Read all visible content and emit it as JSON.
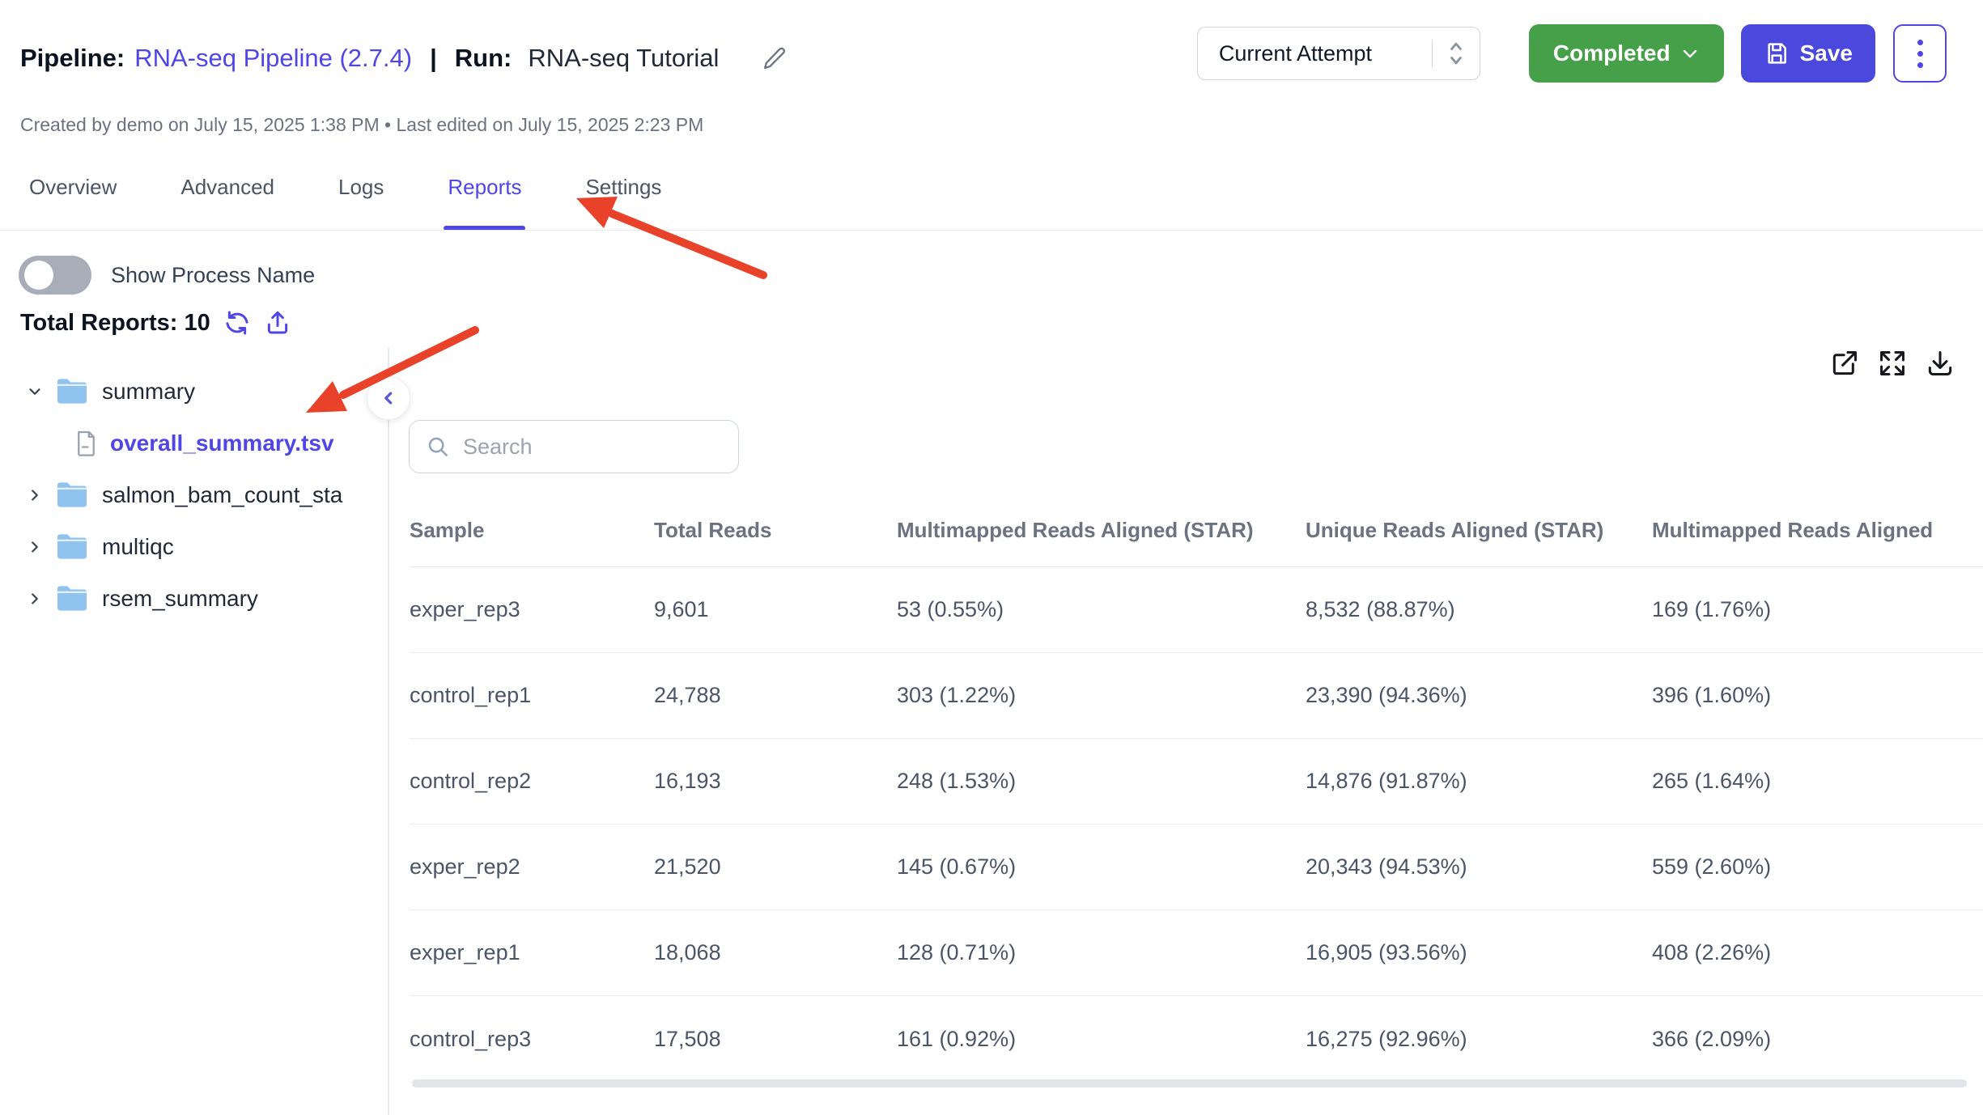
{
  "header": {
    "pipeline_label": "Pipeline:",
    "pipeline_name": "RNA-seq Pipeline (2.7.4)",
    "separator": "|",
    "run_label": "Run:",
    "run_name": "RNA-seq Tutorial",
    "meta": "Created by demo on July 15, 2025 1:38 PM • Last edited on July 15, 2025 2:23 PM",
    "attempt_selector_value": "Current Attempt",
    "status_button_label": "Completed",
    "save_button_label": "Save"
  },
  "tabs": [
    {
      "label": "Overview",
      "active": false
    },
    {
      "label": "Advanced",
      "active": false
    },
    {
      "label": "Logs",
      "active": false
    },
    {
      "label": "Reports",
      "active": true
    },
    {
      "label": "Settings",
      "active": false
    }
  ],
  "reports_toolbar": {
    "toggle_label": "Show Process Name",
    "toggle_state": "off",
    "total_reports_label": "Total Reports: 10"
  },
  "file_tree": {
    "items": [
      {
        "kind": "folder",
        "label": "summary",
        "expanded": true
      },
      {
        "kind": "file",
        "label": "overall_summary.tsv",
        "selected": true
      },
      {
        "kind": "folder",
        "label": "salmon_bam_count_sta",
        "expanded": false
      },
      {
        "kind": "folder",
        "label": "multiqc",
        "expanded": false
      },
      {
        "kind": "folder",
        "label": "rsem_summary",
        "expanded": false
      }
    ]
  },
  "viewer": {
    "search_placeholder": "Search",
    "table": {
      "columns": [
        "Sample",
        "Total Reads",
        "Multimapped Reads Aligned (STAR)",
        "Unique Reads Aligned (STAR)",
        "Multimapped Reads Aligned"
      ],
      "rows": [
        [
          "exper_rep3",
          "9,601",
          "53 (0.55%)",
          "8,532 (88.87%)",
          "169 (1.76%)"
        ],
        [
          "control_rep1",
          "24,788",
          "303 (1.22%)",
          "23,390 (94.36%)",
          "396 (1.60%)"
        ],
        [
          "control_rep2",
          "16,193",
          "248 (1.53%)",
          "14,876 (91.87%)",
          "265 (1.64%)"
        ],
        [
          "exper_rep2",
          "21,520",
          "145 (0.67%)",
          "20,343 (94.53%)",
          "559 (2.60%)"
        ],
        [
          "exper_rep1",
          "18,068",
          "128 (0.71%)",
          "16,905 (93.56%)",
          "408 (2.26%)"
        ],
        [
          "control_rep3",
          "17,508",
          "161 (0.92%)",
          "16,275 (92.96%)",
          "366 (2.09%)"
        ]
      ]
    }
  },
  "icons": {
    "edit": "pencil-icon",
    "select_spinner": "updown-chevrons-icon",
    "status_chevron": "chevron-down-icon",
    "save": "floppy-disk-icon",
    "menu": "kebab-menu-icon",
    "refresh": "refresh-icon",
    "upload": "upload-icon",
    "folder": "folder-icon",
    "file": "file-icon",
    "collapse": "chevron-left-icon",
    "open_external": "external-link-icon",
    "fullscreen": "expand-icon",
    "download": "download-icon",
    "search": "search-icon"
  },
  "colors": {
    "accent_purple": "#4f46e5",
    "save_button": "#4b48dd",
    "status_green": "#45a049",
    "annotation_red": "#e8432a",
    "folder_blue": "#90c4ee",
    "text_dark": "#0b1220",
    "text_slate": "#4a5568",
    "border_gray": "#e5e7eb"
  }
}
